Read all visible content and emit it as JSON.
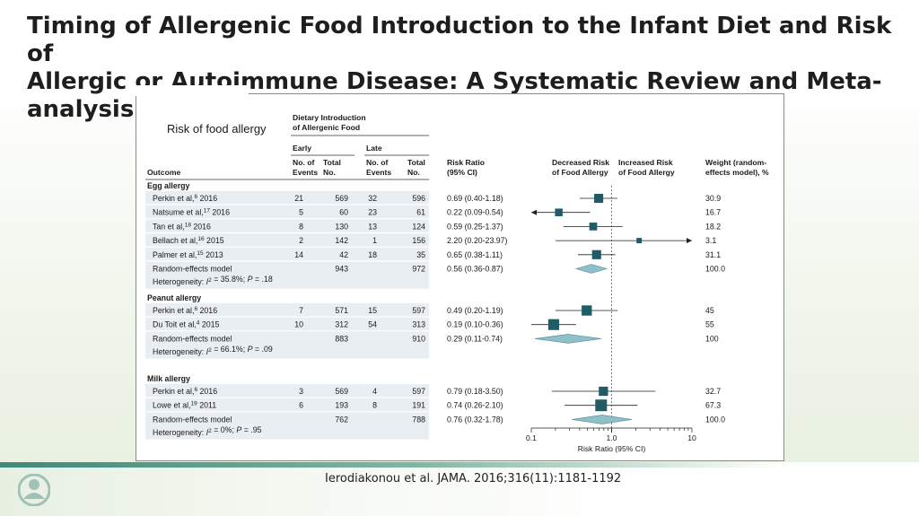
{
  "slide": {
    "title_lines": [
      "Timing of Allergenic Food Introduction to the Infant Diet and Risk of",
      "Allergic or Autoimmune Disease: A Systematic Review and Meta-",
      "analysis"
    ],
    "citation": "Ierodiakonou et al. JAMA. 2016;316(11):1181-1192"
  },
  "colors": {
    "marker": "#1f5c67",
    "diamond": "#8fc0c9",
    "row_band": "#e9eef2"
  },
  "chart_data": {
    "type": "forest",
    "title": "Risk of food allergy",
    "headers": {
      "outcome": "Outcome",
      "dietary": "Dietary Introduction of Allergenic Food",
      "dietary_line1": "Dietary Introduction",
      "dietary_line2": "of Allergenic Food",
      "early": "Early",
      "late": "Late",
      "events_line1": "No. of",
      "events_line2": "Events",
      "total_line1": "Total",
      "total_line2": "No.",
      "rr_line1": "Risk Ratio",
      "rr_line2": "(95% CI)",
      "decreased_line1": "Decreased Risk",
      "decreased_line2": "of Food Allergy",
      "increased_line1": "Increased Risk",
      "increased_line2": "of Food Allergy",
      "weight_line1": "Weight (random-",
      "weight_line2": "effects model), %"
    },
    "xlabel": "Risk Ratio (95% CI)",
    "x_scale": "log",
    "xlim": [
      0.1,
      10
    ],
    "x_ticks": [
      "0.1",
      "1.0",
      "10"
    ],
    "groups": [
      {
        "name": "Egg allergy",
        "studies": [
          {
            "study": "Perkin et al,",
            "ref": "6",
            "year": "2016",
            "early_events": "21",
            "early_total": "569",
            "late_events": "32",
            "late_total": "596",
            "rr_text": "0.69 (0.40-1.18)",
            "rr": 0.69,
            "lo": 0.4,
            "hi": 1.18,
            "weight": "30.9",
            "w": 30.9
          },
          {
            "study": "Natsume et al,",
            "ref": "17",
            "year": "2016",
            "early_events": "5",
            "early_total": "60",
            "late_events": "23",
            "late_total": "61",
            "rr_text": "0.22 (0.09-0.54)",
            "rr": 0.22,
            "lo": 0.09,
            "hi": 0.54,
            "weight": "16.7",
            "w": 16.7
          },
          {
            "study": "Tan et al,",
            "ref": "18",
            "year": "2016",
            "early_events": "8",
            "early_total": "130",
            "late_events": "13",
            "late_total": "124",
            "rr_text": "0.59 (0.25-1.37)",
            "rr": 0.59,
            "lo": 0.25,
            "hi": 1.37,
            "weight": "18.2",
            "w": 18.2
          },
          {
            "study": "Bellach et al,",
            "ref": "16",
            "year": "2015",
            "early_events": "2",
            "early_total": "142",
            "late_events": "1",
            "late_total": "156",
            "rr_text": "2.20 (0.20-23.97)",
            "rr": 2.2,
            "lo": 0.2,
            "hi": 23.97,
            "weight": "3.1",
            "w": 3.1
          },
          {
            "study": "Palmer et al,",
            "ref": "15",
            "year": "2013",
            "early_events": "14",
            "early_total": "42",
            "late_events": "18",
            "late_total": "35",
            "rr_text": "0.65 (0.38-1.11)",
            "rr": 0.65,
            "lo": 0.38,
            "hi": 1.11,
            "weight": "31.1",
            "w": 31.1
          }
        ],
        "pooled": {
          "label": "Random-effects model",
          "early_total": "943",
          "late_total": "972",
          "rr_text": "0.56 (0.36-0.87)",
          "rr": 0.56,
          "lo": 0.36,
          "hi": 0.87,
          "weight": "100.0"
        },
        "heterogeneity": {
          "prefix": "Heterogeneity: ",
          "i2": "I",
          "rest": " = 35.8%; ",
          "p": "P",
          "p_rest": " = .18"
        }
      },
      {
        "name": "Peanut allergy",
        "studies": [
          {
            "study": "Perkin et al,",
            "ref": "6",
            "year": "2016",
            "early_events": "7",
            "early_total": "571",
            "late_events": "15",
            "late_total": "597",
            "rr_text": "0.49 (0.20-1.19)",
            "rr": 0.49,
            "lo": 0.2,
            "hi": 1.19,
            "weight": "45",
            "w": 45
          },
          {
            "study": "Du Toit et al,",
            "ref": "4",
            "year": "2015",
            "early_events": "10",
            "early_total": "312",
            "late_events": "54",
            "late_total": "313",
            "rr_text": "0.19 (0.10-0.36)",
            "rr": 0.19,
            "lo": 0.1,
            "hi": 0.36,
            "weight": "55",
            "w": 55
          }
        ],
        "pooled": {
          "label": "Random-effects model",
          "early_total": "883",
          "late_total": "910",
          "rr_text": "0.29 (0.11-0.74)",
          "rr": 0.29,
          "lo": 0.11,
          "hi": 0.74,
          "weight": "100"
        },
        "heterogeneity": {
          "prefix": "Heterogeneity: ",
          "i2": "I",
          "rest": " = 66.1%; ",
          "p": "P",
          "p_rest": " = .09"
        }
      },
      {
        "name": "Milk allergy",
        "studies": [
          {
            "study": "Perkin et al,",
            "ref": "6",
            "year": "2016",
            "early_events": "3",
            "early_total": "569",
            "late_events": "4",
            "late_total": "597",
            "rr_text": "0.79 (0.18-3.50)",
            "rr": 0.79,
            "lo": 0.18,
            "hi": 3.5,
            "weight": "32.7",
            "w": 32.7
          },
          {
            "study": "Lowe et al,",
            "ref": "19",
            "year": "2011",
            "early_events": "6",
            "early_total": "193",
            "late_events": "8",
            "late_total": "191",
            "rr_text": "0.74 (0.26-2.10)",
            "rr": 0.74,
            "lo": 0.26,
            "hi": 2.1,
            "weight": "67.3",
            "w": 67.3
          }
        ],
        "pooled": {
          "label": "Random-effects model",
          "early_total": "762",
          "late_total": "788",
          "rr_text": "0.76 (0.32-1.78)",
          "rr": 0.76,
          "lo": 0.32,
          "hi": 1.78,
          "weight": "100.0"
        },
        "heterogeneity": {
          "prefix": "Heterogeneity: ",
          "i2": "I",
          "rest": " = 0%; ",
          "p": "P",
          "p_rest": " = .95"
        }
      }
    ]
  }
}
